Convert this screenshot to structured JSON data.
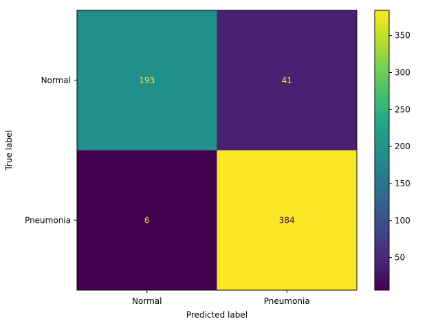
{
  "chart_data": {
    "type": "heatmap",
    "x_categories": [
      "Normal",
      "Pneumonia"
    ],
    "y_categories": [
      "Normal",
      "Pneumonia"
    ],
    "values": [
      [
        193,
        41
      ],
      [
        6,
        384
      ]
    ],
    "xlabel": "Predicted label",
    "ylabel": "True label",
    "colormap": "viridis",
    "colorbar": {
      "range": [
        6,
        384
      ],
      "ticks": [
        50,
        100,
        150,
        200,
        250,
        300,
        350
      ]
    },
    "cell_text_colors": {
      "on_dark": "#fde725",
      "on_light": "#440154"
    }
  }
}
